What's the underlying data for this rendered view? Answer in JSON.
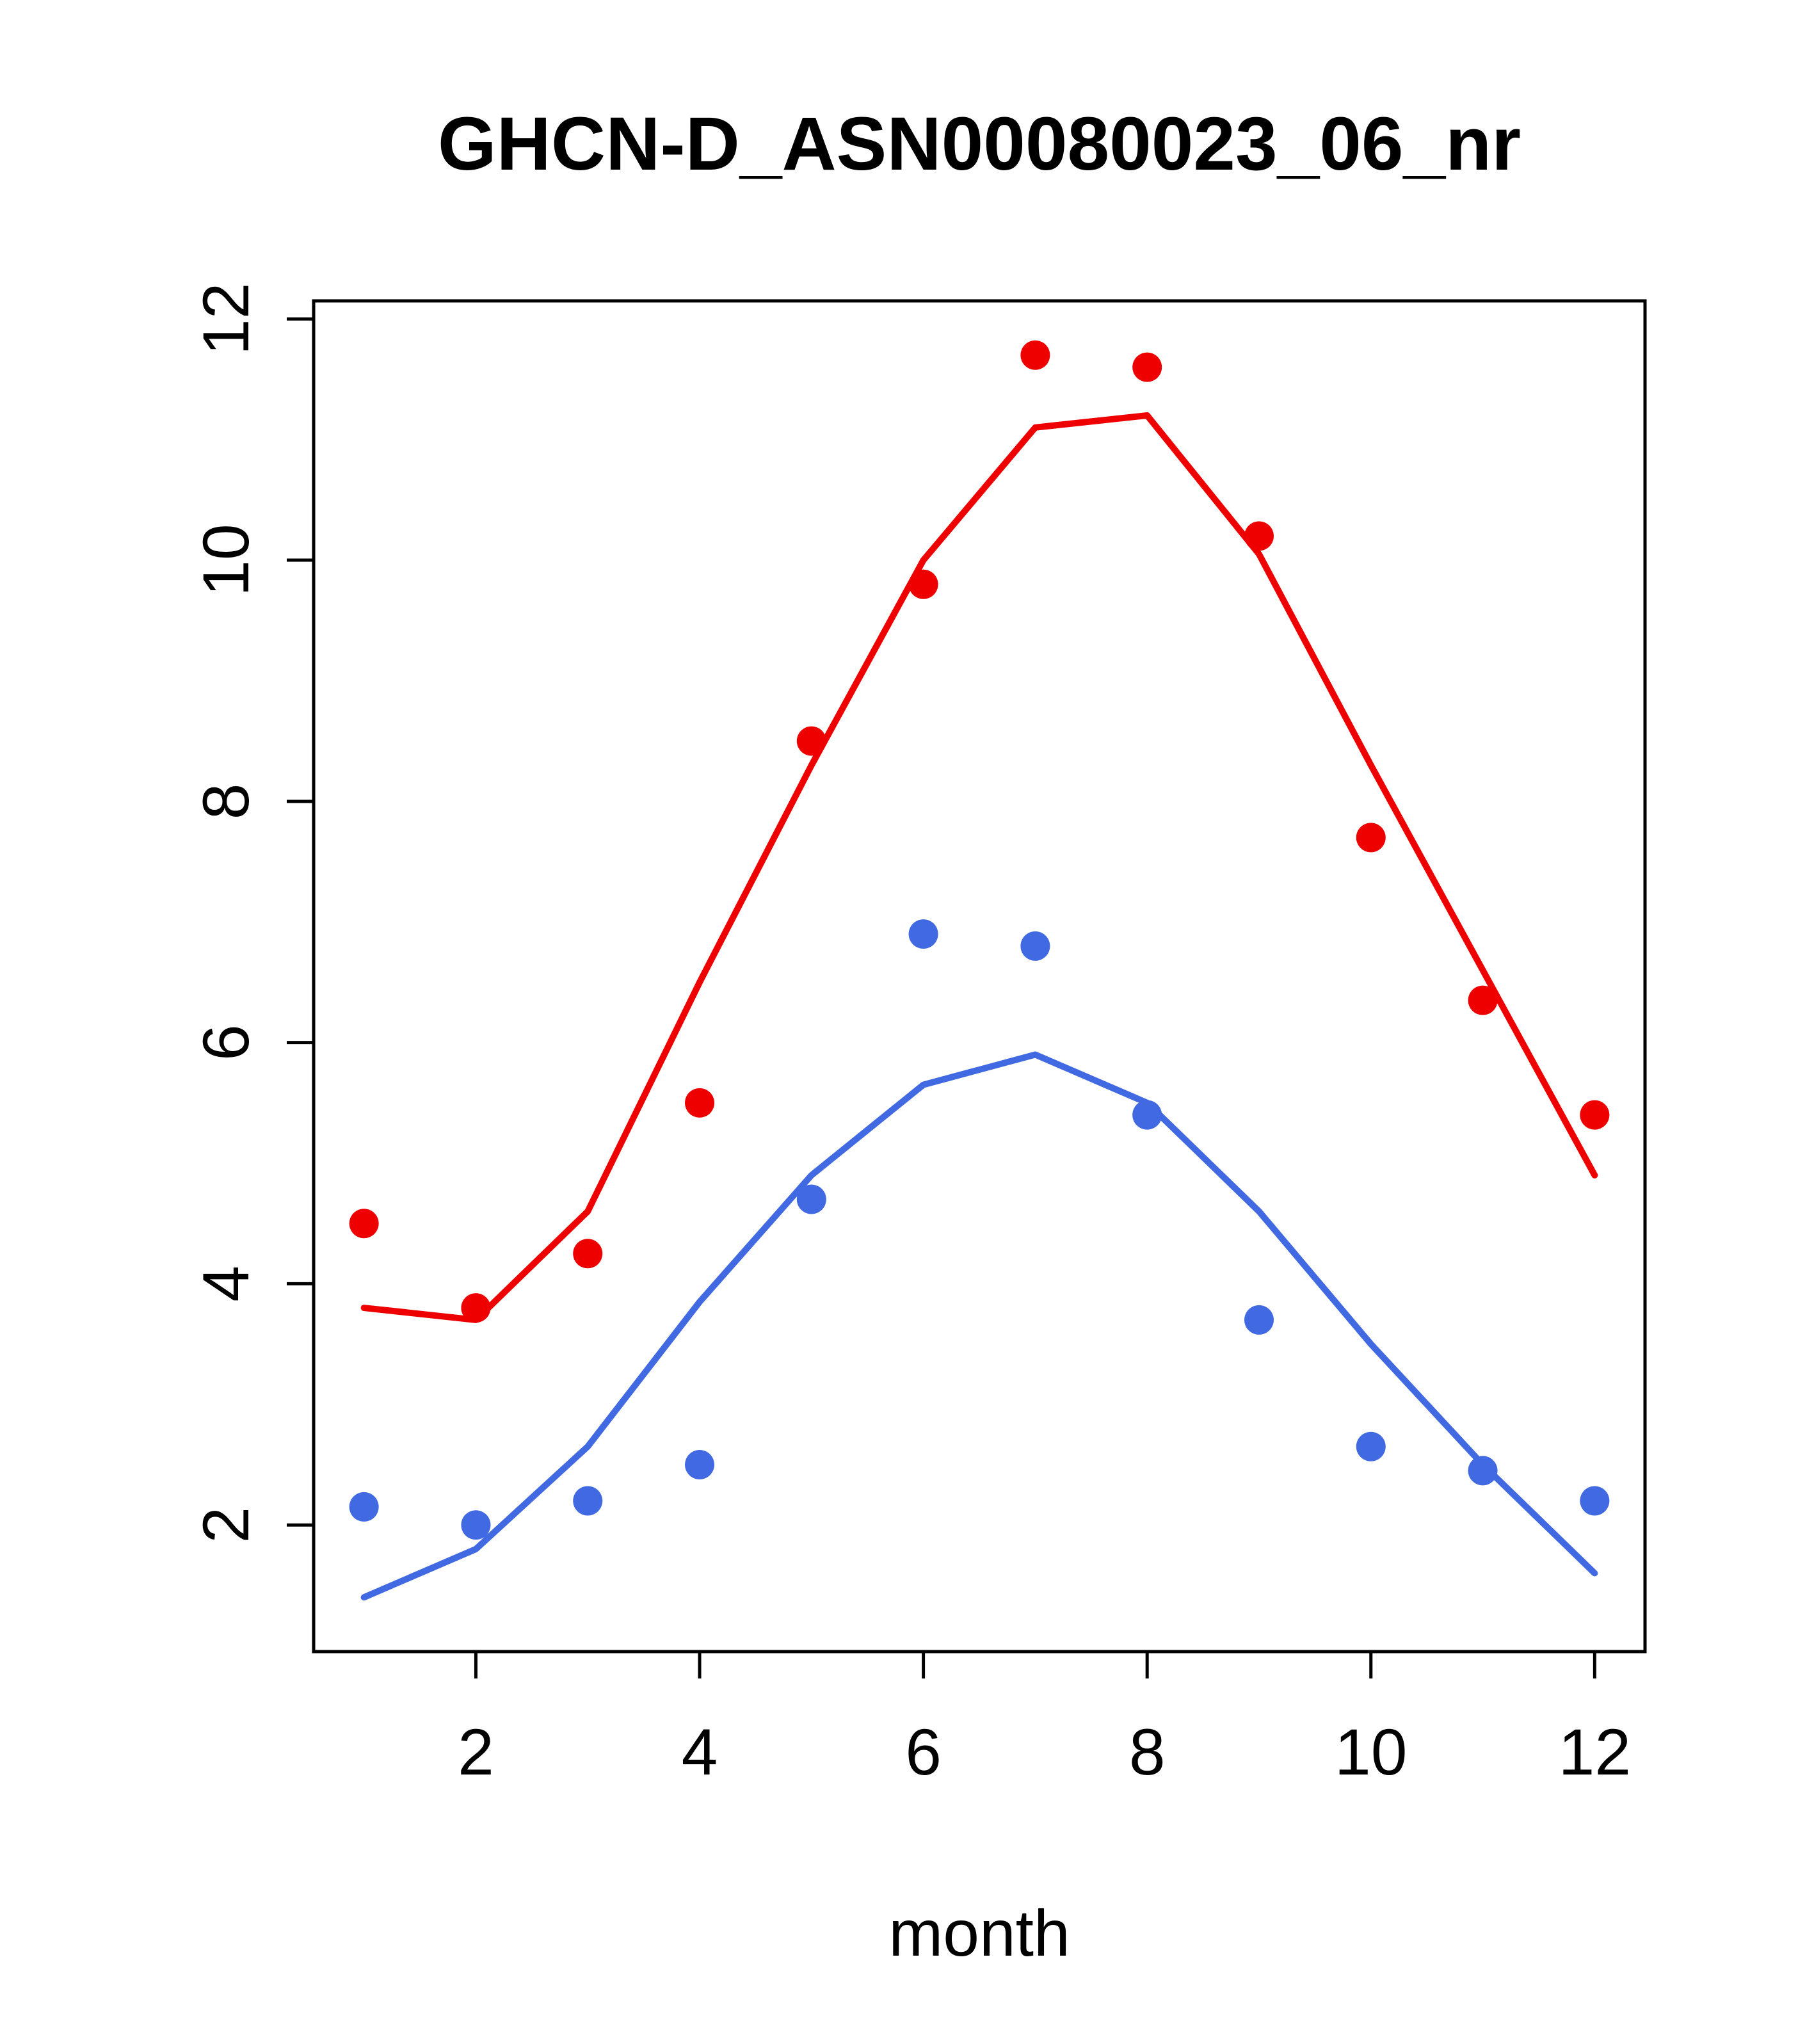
{
  "title": "GHCN-D_ASN00080023_06_nr",
  "chart_data": {
    "type": "line",
    "title": "GHCN-D_ASN00080023_06_nr",
    "xlabel": "month",
    "ylabel": "",
    "grid": false,
    "legend": "none",
    "xlim": [
      0.55,
      12.45
    ],
    "ylim": [
      0.95,
      12.15
    ],
    "x_ticks": [
      2,
      4,
      6,
      8,
      10,
      12
    ],
    "y_ticks": [
      2,
      4,
      6,
      8,
      10,
      12
    ],
    "x": [
      1,
      2,
      3,
      4,
      5,
      6,
      7,
      8,
      9,
      10,
      11,
      12
    ],
    "colors": {
      "red": "#ee0000",
      "blue": "#4169e1"
    },
    "series": [
      {
        "name": "red-line",
        "type": "line",
        "color": "#ee0000",
        "values": [
          3.8,
          3.7,
          4.6,
          6.5,
          8.3,
          10.0,
          11.1,
          11.2,
          10.05,
          8.3,
          6.6,
          4.9
        ]
      },
      {
        "name": "blue-line",
        "type": "line",
        "color": "#4169e1",
        "values": [
          1.4,
          1.8,
          2.65,
          3.85,
          4.9,
          5.65,
          5.9,
          5.5,
          4.6,
          3.5,
          2.5,
          1.6
        ]
      },
      {
        "name": "red-points",
        "type": "scatter",
        "color": "#ee0000",
        "values": [
          4.5,
          3.8,
          4.25,
          5.5,
          8.5,
          9.8,
          11.7,
          11.6,
          10.2,
          7.7,
          6.35,
          5.4
        ]
      },
      {
        "name": "blue-points",
        "type": "scatter",
        "color": "#4169e1",
        "values": [
          2.15,
          2.0,
          2.2,
          2.5,
          4.7,
          6.9,
          6.8,
          5.4,
          3.7,
          2.65,
          2.45,
          2.2
        ]
      }
    ]
  }
}
